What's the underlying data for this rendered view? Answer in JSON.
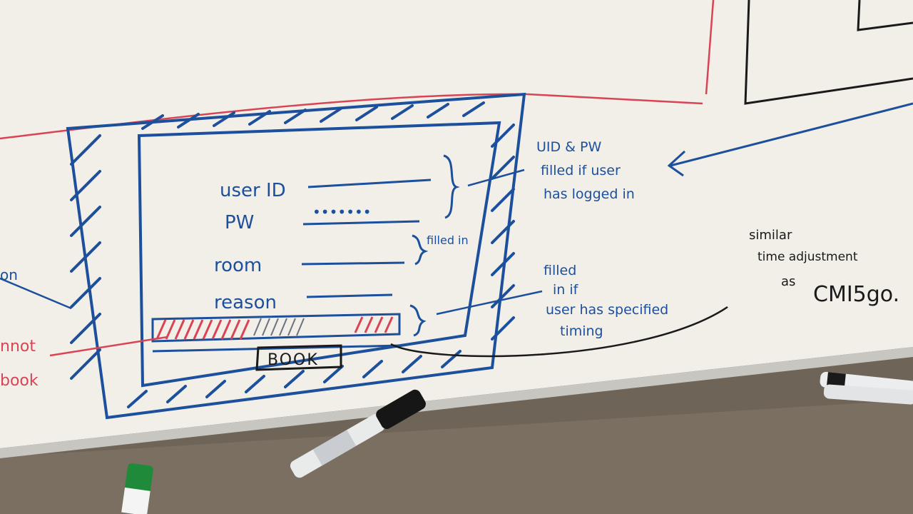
{
  "colors": {
    "board": "#f2efe8",
    "blue_ink": "#1c4f9c",
    "red_ink": "#d94455",
    "black_ink": "#1a1a1a",
    "tray": "#c7c6c1",
    "shelf": "#7b6f62"
  },
  "sketch": {
    "user_id_label": "user ID",
    "pw_label": "PW",
    "pw_dots": "•••••••",
    "room_label": "room",
    "reason_label": "reason",
    "book_button": "BOOK",
    "brace_filled_in": "filled in"
  },
  "notes": {
    "uid_pw": [
      "UID & PW",
      "filled if user",
      "has logged in"
    ],
    "filled_timing": [
      "filled",
      "in if",
      "user has specified",
      "timing"
    ],
    "similar": [
      "similar",
      "time adjustment",
      "as",
      "CMI5go."
    ],
    "cannot_book": [
      "nnot",
      "book"
    ],
    "left_fragment": "on"
  },
  "icons": {
    "timebar": "hatched-time-bar",
    "marker": "marker-pen"
  }
}
